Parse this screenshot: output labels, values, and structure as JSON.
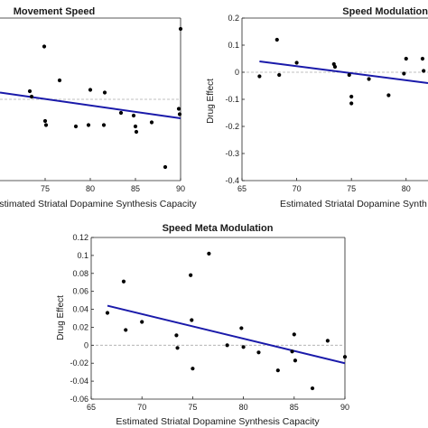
{
  "chart_data": [
    {
      "type": "scatter",
      "title": "Movement Speed",
      "xlabel": "Estimated Striatal Dopamine Synthesis Capacity",
      "ylabel": "",
      "xlim": [
        70,
        90
      ],
      "ylim": [
        -0.6,
        0.6
      ],
      "xticks": [
        75,
        80,
        85,
        90
      ],
      "yticks": [],
      "grid": false,
      "zero_line": true,
      "colors": {
        "points": "#000000",
        "fit": "#1a1aaa",
        "zero": "#aaaaaa"
      },
      "points": [
        {
          "x": 73.3,
          "y": 0.06
        },
        {
          "x": 73.5,
          "y": 0.02
        },
        {
          "x": 74.9,
          "y": 0.39
        },
        {
          "x": 75.0,
          "y": -0.16
        },
        {
          "x": 75.1,
          "y": -0.19
        },
        {
          "x": 76.6,
          "y": 0.14
        },
        {
          "x": 78.4,
          "y": -0.2
        },
        {
          "x": 79.8,
          "y": -0.19
        },
        {
          "x": 80.0,
          "y": 0.07
        },
        {
          "x": 81.5,
          "y": -0.19
        },
        {
          "x": 81.6,
          "y": 0.05
        },
        {
          "x": 83.4,
          "y": -0.1
        },
        {
          "x": 84.8,
          "y": -0.12
        },
        {
          "x": 85.0,
          "y": -0.2
        },
        {
          "x": 85.1,
          "y": -0.24
        },
        {
          "x": 86.8,
          "y": -0.17
        },
        {
          "x": 88.3,
          "y": -0.5
        },
        {
          "x": 89.8,
          "y": -0.07
        },
        {
          "x": 89.9,
          "y": -0.11
        },
        {
          "x": 90.0,
          "y": 0.52
        }
      ],
      "fit": {
        "x": [
          70,
          90
        ],
        "y": [
          0.05,
          -0.14
        ]
      }
    },
    {
      "type": "scatter",
      "title": "Speed Modulation",
      "xlabel": "Estimated Striatal Dopamine Synth",
      "ylabel": "Drug Effect",
      "xlim": [
        65,
        82
      ],
      "ylim": [
        -0.4,
        0.2
      ],
      "xticks": [
        65,
        70,
        75,
        80
      ],
      "yticks": [
        0.2,
        0.1,
        0,
        -0.1,
        -0.2,
        -0.3,
        -0.4
      ],
      "ytick_labels": [
        "0.2",
        "0.1",
        "0",
        "-0.1",
        "-0.2",
        "-0.3",
        "-0.4"
      ],
      "grid": false,
      "zero_line": true,
      "colors": {
        "points": "#000000",
        "fit": "#1a1aaa",
        "zero": "#aaaaaa"
      },
      "points": [
        {
          "x": 66.6,
          "y": -0.015
        },
        {
          "x": 68.2,
          "y": 0.12
        },
        {
          "x": 68.4,
          "y": -0.01
        },
        {
          "x": 70.0,
          "y": 0.035
        },
        {
          "x": 73.4,
          "y": 0.03
        },
        {
          "x": 73.5,
          "y": 0.02
        },
        {
          "x": 74.8,
          "y": -0.01
        },
        {
          "x": 75.0,
          "y": -0.09
        },
        {
          "x": 75.0,
          "y": -0.115
        },
        {
          "x": 76.6,
          "y": -0.025
        },
        {
          "x": 78.4,
          "y": -0.085
        },
        {
          "x": 79.8,
          "y": -0.005
        },
        {
          "x": 80.0,
          "y": 0.05
        },
        {
          "x": 81.5,
          "y": 0.05
        },
        {
          "x": 81.6,
          "y": 0.005
        }
      ],
      "fit": {
        "x": [
          66.6,
          82
        ],
        "y": [
          0.04,
          -0.04
        ]
      }
    },
    {
      "type": "scatter",
      "title": "Speed Meta Modulation",
      "xlabel": "Estimated Striatal Dopamine Synthesis Capacity",
      "ylabel": "Drug Effect",
      "xlim": [
        65,
        90
      ],
      "ylim": [
        -0.06,
        0.12
      ],
      "xticks": [
        65,
        70,
        75,
        80,
        85,
        90
      ],
      "yticks": [
        -0.06,
        -0.04,
        -0.02,
        0,
        0.02,
        0.04,
        0.06,
        0.08,
        0.1,
        0.12
      ],
      "ytick_labels": [
        "-0.06",
        "-0.04",
        "-0.02",
        "0",
        "0.02",
        "0.04",
        "0.06",
        "0.08",
        "0.1",
        "0.12"
      ],
      "grid": false,
      "zero_line": true,
      "colors": {
        "points": "#000000",
        "fit": "#1a1aaa",
        "zero": "#aaaaaa"
      },
      "points": [
        {
          "x": 66.6,
          "y": 0.036
        },
        {
          "x": 68.2,
          "y": 0.071
        },
        {
          "x": 68.4,
          "y": 0.017
        },
        {
          "x": 70.0,
          "y": 0.026
        },
        {
          "x": 73.4,
          "y": 0.011
        },
        {
          "x": 73.5,
          "y": -0.003
        },
        {
          "x": 74.8,
          "y": 0.078
        },
        {
          "x": 74.9,
          "y": 0.028
        },
        {
          "x": 75.0,
          "y": -0.026
        },
        {
          "x": 76.6,
          "y": 0.102
        },
        {
          "x": 78.4,
          "y": 0.0
        },
        {
          "x": 79.8,
          "y": 0.019
        },
        {
          "x": 80.0,
          "y": -0.002
        },
        {
          "x": 81.5,
          "y": -0.008
        },
        {
          "x": 83.4,
          "y": -0.028
        },
        {
          "x": 84.8,
          "y": -0.007
        },
        {
          "x": 85.0,
          "y": 0.012
        },
        {
          "x": 85.1,
          "y": -0.017
        },
        {
          "x": 86.8,
          "y": -0.048
        },
        {
          "x": 88.3,
          "y": 0.005
        },
        {
          "x": 90.0,
          "y": -0.013
        }
      ],
      "fit": {
        "x": [
          66.6,
          90
        ],
        "y": [
          0.044,
          -0.02
        ]
      }
    }
  ]
}
